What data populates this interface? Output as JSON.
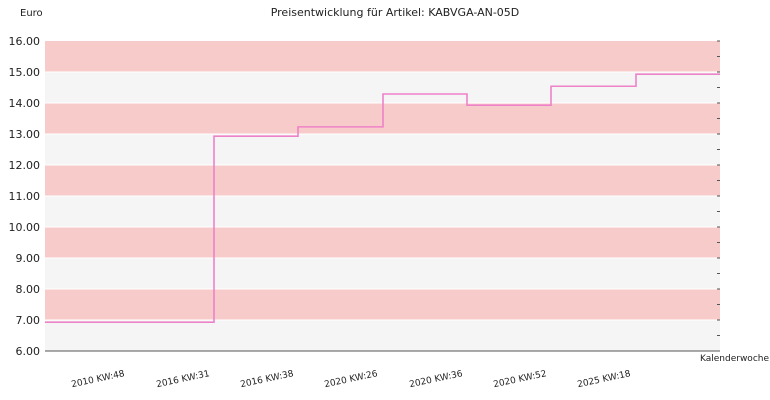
{
  "chart_data": {
    "type": "line",
    "line_style": "step",
    "title": "Preisentwicklung für Artikel: KABVGA-AN-05D",
    "ylabel": "Euro",
    "xlabel": "Kalenderwoche",
    "ylim": [
      6,
      16
    ],
    "y_ticks": [
      "6.00",
      "7.00",
      "8.00",
      "9.00",
      "10.00",
      "11.00",
      "12.00",
      "13.00",
      "14.00",
      "15.00",
      "16.00"
    ],
    "categories": [
      "2010 KW:48",
      "2016 KW:31",
      "2016 KW:38",
      "2020 KW:26",
      "2020 KW:36",
      "2020 KW:52",
      "2025 KW:18"
    ],
    "series": [
      {
        "values": [
          6.93,
          12.93,
          13.23,
          14.29,
          13.93,
          14.54,
          14.93
        ]
      }
    ],
    "grid": "horizontal alternating bands",
    "colors": {
      "line": "#ee82c8",
      "band_dark": "#f8cbcb",
      "band_light": "#f5f5f5",
      "grid_line": "#ffffff",
      "axis": "#555555"
    }
  }
}
